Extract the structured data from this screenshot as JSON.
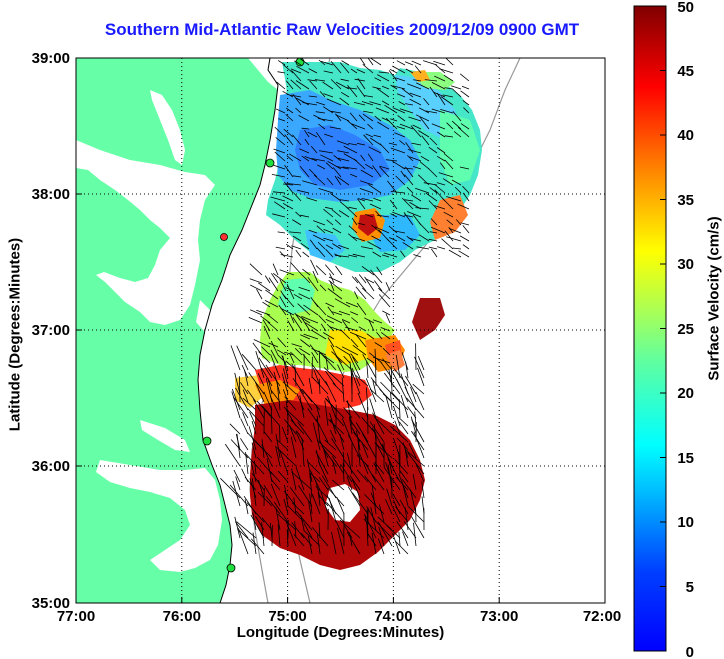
{
  "title": "Southern Mid-Atlantic Raw Velocities 2009/12/09 0900 GMT",
  "xlabel": "Longitude (Degrees:Minutes)",
  "ylabel": "Latitude (Degrees:Minutes)",
  "colorbar": {
    "label": "Surface Velocity (cm/s)",
    "ticks": [
      "0",
      "5",
      "10",
      "15",
      "20",
      "25",
      "30",
      "35",
      "40",
      "45",
      "50"
    ]
  },
  "axes": {
    "x_ticks": [
      "77:00",
      "76:00",
      "75:00",
      "74:00",
      "73:00",
      "72:00"
    ],
    "y_ticks": [
      "39:00",
      "38:00",
      "37:00",
      "36:00",
      "35:00"
    ]
  },
  "colors": {
    "land": "#66ffa8",
    "ocean": "#ffffff",
    "title": "#1a1aff"
  }
}
